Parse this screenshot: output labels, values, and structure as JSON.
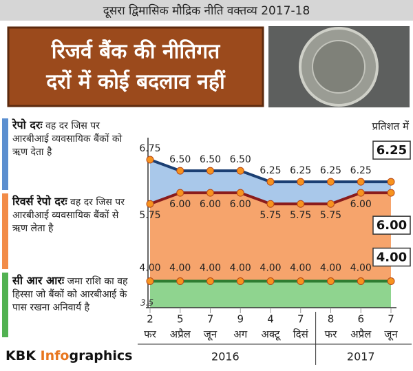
{
  "header": "दूसरा द्विमासिक मौद्रिक नीति वक्तव्य 2017-18",
  "title_lines": [
    "रिजर्व बैंक की नीतिगत",
    "दरों में कोई बदलाव नहीं"
  ],
  "brand": [
    "KBK ",
    "Info",
    "graphics"
  ],
  "chart_data": {
    "type": "line",
    "unit": "प्रतिशत में",
    "categories": [
      [
        "2",
        "फर"
      ],
      [
        "5",
        "अप्रैल"
      ],
      [
        "7",
        "जून"
      ],
      [
        "9",
        "अग"
      ],
      [
        "4",
        "अक्टू"
      ],
      [
        "7",
        "दिसं"
      ],
      [
        "8",
        "फर"
      ],
      [
        "6",
        "अप्रैल"
      ],
      [
        "7",
        "जून"
      ]
    ],
    "years": [
      "2016",
      "2017"
    ],
    "ylim": [
      3.4,
      7.0
    ],
    "yticks": [
      3.5
    ],
    "series": [
      {
        "name": "रेपो दरः",
        "description": "वह दर जिस पर आरबीआई व्यवसायिक बैंकों को ऋण देता है",
        "color": "#1b3f73",
        "fill": "#a9c8ea",
        "values": [
          6.75,
          6.5,
          6.5,
          6.5,
          6.25,
          6.25,
          6.25,
          6.25,
          6.25
        ],
        "value_labels": [
          "6.75",
          "6.50",
          "6.50",
          "6.50",
          "6.25",
          "6.25",
          "6.25",
          "6.25",
          "6.25"
        ]
      },
      {
        "name": "रिवर्स रेपो दरः",
        "description": "वह दर जिस पर आरबीआई व्यवसायिक बैंकों से ऋण लेता है",
        "color": "#8a1c1c",
        "fill": "#f6a46c",
        "values": [
          5.75,
          6.0,
          6.0,
          6.0,
          5.75,
          5.75,
          5.75,
          6.0,
          6.0
        ],
        "value_labels": [
          "5.75",
          "6.00",
          "6.00",
          "6.00",
          "5.75",
          "5.75",
          "5.75",
          "6.00",
          "6.00"
        ]
      },
      {
        "name": "सी आर आरः",
        "description": "जमा राशि का वह हिस्सा जो बैंकों को आरबीआई के पास रखना अनिवार्य है",
        "color": "#2e7d32",
        "fill": "#8fd48f",
        "values": [
          4.0,
          4.0,
          4.0,
          4.0,
          4.0,
          4.0,
          4.0,
          4.0,
          4.0
        ],
        "value_labels": [
          "4.00",
          "4.00",
          "4.00",
          "4.00",
          "4.00",
          "4.00",
          "4.00",
          "4.00",
          "4.00"
        ]
      }
    ]
  }
}
